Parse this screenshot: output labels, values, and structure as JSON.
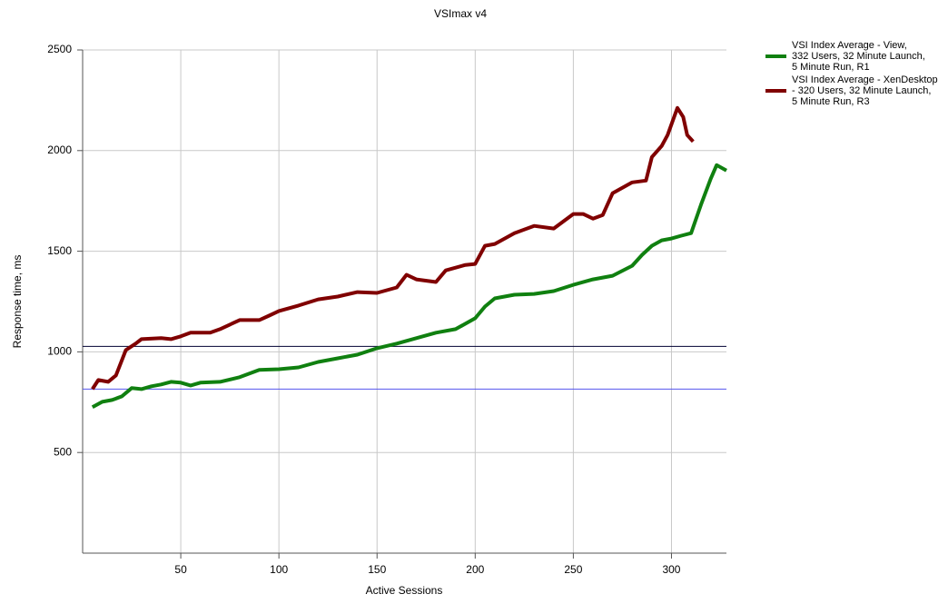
{
  "chart_data": {
    "type": "line",
    "title": "VSImax v4",
    "x_label": "Active Sessions",
    "y_label": "Response time, ms",
    "xlim": [
      0,
      328
    ],
    "xticks": [
      50,
      100,
      150,
      200,
      250,
      300
    ],
    "ylim": [
      0,
      2500
    ],
    "yticks": [
      500,
      1000,
      1500,
      2000,
      2500
    ],
    "grid": true,
    "legend": "right",
    "reference_lines": [
      {
        "value": 1027,
        "color": "#000033"
      },
      {
        "value": 815,
        "color": "#5555ee"
      }
    ],
    "series": [
      {
        "name": "VSI Index Average - View,\n332 Users, 32 Minute Launch,\n5 Minute Run, R1",
        "color": "#108010",
        "x": [
          5,
          10,
          15,
          20,
          25,
          30,
          35,
          40,
          45,
          50,
          55,
          60,
          70,
          80,
          90,
          100,
          110,
          120,
          130,
          140,
          150,
          160,
          170,
          180,
          190,
          200,
          205,
          210,
          220,
          230,
          240,
          250,
          260,
          270,
          280,
          285,
          290,
          295,
          300,
          305,
          310,
          315,
          320,
          323,
          328
        ],
        "values": [
          725,
          752,
          761,
          779,
          820,
          815,
          829,
          838,
          851,
          847,
          833,
          847,
          851,
          874,
          910,
          914,
          923,
          950,
          968,
          986,
          1018,
          1041,
          1068,
          1095,
          1113,
          1167,
          1225,
          1266,
          1284,
          1288,
          1302,
          1333,
          1360,
          1378,
          1428,
          1482,
          1527,
          1554,
          1563,
          1577,
          1590,
          1730,
          1860,
          1928,
          1901
        ]
      },
      {
        "name": "VSI Index Average - XenDesktop\n- 320 Users, 32 Minute Launch,\n5 Minute Run, R3",
        "color": "#800000",
        "x": [
          5,
          8,
          13,
          17,
          22,
          27,
          30,
          40,
          45,
          50,
          55,
          65,
          70,
          80,
          90,
          95,
          100,
          110,
          120,
          130,
          140,
          150,
          160,
          165,
          170,
          180,
          185,
          195,
          200,
          205,
          210,
          220,
          230,
          240,
          250,
          255,
          260,
          265,
          270,
          280,
          287,
          290,
          295,
          298,
          303,
          306,
          308,
          311
        ],
        "values": [
          815,
          860,
          851,
          883,
          1009,
          1041,
          1063,
          1068,
          1063,
          1077,
          1095,
          1095,
          1113,
          1158,
          1158,
          1180,
          1203,
          1230,
          1261,
          1275,
          1297,
          1293,
          1320,
          1383,
          1360,
          1347,
          1405,
          1432,
          1437,
          1527,
          1536,
          1590,
          1626,
          1613,
          1685,
          1685,
          1662,
          1680,
          1788,
          1842,
          1851,
          1968,
          2023,
          2077,
          2212,
          2167,
          2077,
          2045
        ]
      }
    ]
  }
}
